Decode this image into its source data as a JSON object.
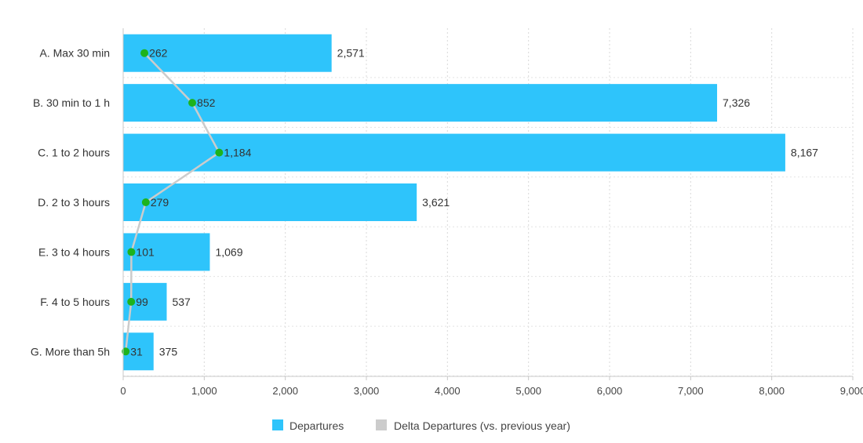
{
  "chart_data": {
    "type": "bar",
    "orientation": "horizontal",
    "categories": [
      "A. Max 30 min",
      "B. 30 min to 1 h",
      "C. 1 to 2 hours",
      "D. 2 to 3 hours",
      "E. 3 to 4 hours",
      "F. 4 to 5 hours",
      "G. More than 5h"
    ],
    "series": [
      {
        "name": "Departures",
        "type": "bar",
        "color": "#2ec4fb",
        "values": [
          2571,
          7326,
          8167,
          3621,
          1069,
          537,
          375
        ],
        "labels": [
          "2,571",
          "7,326",
          "8,167",
          "3,621",
          "1,069",
          "537",
          "375"
        ]
      },
      {
        "name": "Delta Departures (vs. previous year)",
        "type": "line",
        "color": "#cccccc",
        "marker_color": "#1db31d",
        "values": [
          262,
          852,
          1184,
          279,
          101,
          99,
          31
        ],
        "labels": [
          "262",
          "852",
          "1,184",
          "279",
          "101",
          "99",
          "31"
        ]
      }
    ],
    "x_ticks": [
      "0",
      "1,000",
      "2,000",
      "3,000",
      "4,000",
      "5,000",
      "6,000",
      "7,000",
      "8,000",
      "9,000"
    ],
    "xlim": [
      0,
      9000
    ],
    "grid": true,
    "legend_position": "bottom-center"
  }
}
